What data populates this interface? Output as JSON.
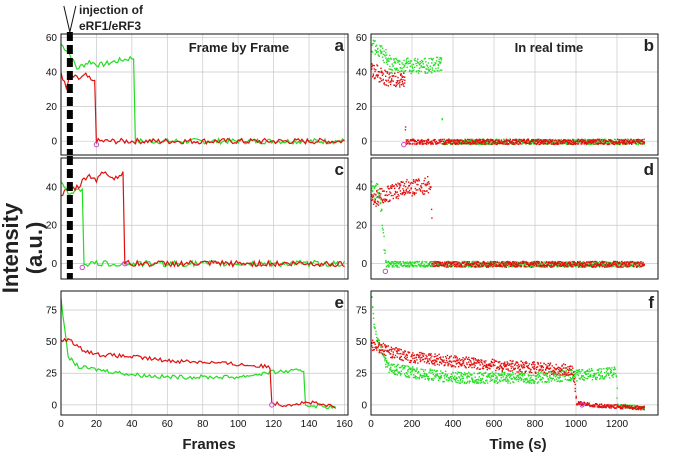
{
  "figure": {
    "ylabel_line1": "Intensity",
    "ylabel_line2": "(a.u.)",
    "xlabel_left": "Frames",
    "xlabel_right": "Time (s)",
    "annotation_line1": "injection of",
    "annotation_line2": "eRF1/eRF3",
    "colors": {
      "green": "#22dd22",
      "red": "#e01010",
      "marker": "#cc44cc",
      "injection": "#000000"
    }
  },
  "chart_data": [
    {
      "id": "a",
      "panel_label": "a",
      "heading": "Frame by Frame",
      "type": "line",
      "xlim": [
        0,
        162
      ],
      "ylim": [
        -8,
        62
      ],
      "yticks": [
        0,
        20,
        40,
        60
      ],
      "xticks": [],
      "injection_x": 5,
      "series": [
        {
          "color": "green",
          "segments": [
            [
              0,
              56
            ],
            [
              4,
              52
            ],
            [
              9,
              42
            ],
            [
              16,
              46
            ],
            [
              22,
              44
            ],
            [
              30,
              46
            ],
            [
              39,
              48
            ],
            [
              41,
              48
            ],
            [
              42,
              0
            ],
            [
              160,
              0
            ]
          ]
        },
        {
          "color": "red",
          "segments": [
            [
              0,
              40
            ],
            [
              3,
              30
            ],
            [
              5,
              38
            ],
            [
              10,
              36
            ],
            [
              14,
              38
            ],
            [
              18,
              34
            ],
            [
              19.5,
              36
            ],
            [
              20,
              0
            ],
            [
              160,
              0
            ]
          ]
        }
      ],
      "markers": [
        {
          "x": 20,
          "y": -2
        }
      ]
    },
    {
      "id": "b",
      "panel_label": "b",
      "heading": "In real time",
      "type": "scatter",
      "xlim": [
        0,
        1400
      ],
      "ylim": [
        -8,
        62
      ],
      "yticks": [
        0,
        20,
        40,
        60
      ],
      "xticks": [],
      "series": [
        {
          "color": "green",
          "segments": [
            [
              0,
              56
            ],
            [
              50,
              52
            ],
            [
              100,
              44
            ],
            [
              200,
              44
            ],
            [
              300,
              44
            ],
            [
              340,
              46
            ],
            [
              345,
              0
            ],
            [
              1330,
              0
            ]
          ]
        },
        {
          "color": "red",
          "segments": [
            [
              0,
              42
            ],
            [
              50,
              38
            ],
            [
              100,
              36
            ],
            [
              160,
              36
            ],
            [
              165,
              0
            ],
            [
              1330,
              0
            ]
          ]
        }
      ],
      "markers": [
        {
          "x": 160,
          "y": -2
        }
      ]
    },
    {
      "id": "c",
      "panel_label": "c",
      "heading": "",
      "type": "line",
      "xlim": [
        0,
        162
      ],
      "ylim": [
        -8,
        55
      ],
      "yticks": [
        0,
        20,
        40
      ],
      "xticks": [],
      "injection_x": 5,
      "series": [
        {
          "color": "green",
          "segments": [
            [
              0,
              42
            ],
            [
              5,
              36
            ],
            [
              10,
              40
            ],
            [
              12,
              38
            ],
            [
              13,
              0
            ],
            [
              160,
              0
            ]
          ]
        },
        {
          "color": "red",
          "segments": [
            [
              0,
              36
            ],
            [
              5,
              38
            ],
            [
              10,
              40
            ],
            [
              15,
              46
            ],
            [
              20,
              44
            ],
            [
              25,
              48
            ],
            [
              30,
              44
            ],
            [
              35,
              48
            ],
            [
              36,
              0
            ],
            [
              160,
              0
            ]
          ]
        }
      ],
      "markers": [
        {
          "x": 12,
          "y": -2
        },
        {
          "x": 36,
          "y": 0
        }
      ]
    },
    {
      "id": "d",
      "panel_label": "d",
      "heading": "",
      "type": "scatter",
      "xlim": [
        0,
        1400
      ],
      "ylim": [
        -8,
        55
      ],
      "yticks": [
        0,
        20,
        40
      ],
      "xticks": [],
      "series": [
        {
          "color": "green",
          "segments": [
            [
              0,
              40
            ],
            [
              40,
              36
            ],
            [
              70,
              0
            ],
            [
              1330,
              0
            ]
          ]
        },
        {
          "color": "red",
          "segments": [
            [
              0,
              34
            ],
            [
              60,
              36
            ],
            [
              120,
              38
            ],
            [
              180,
              40
            ],
            [
              240,
              40
            ],
            [
              290,
              42
            ],
            [
              295,
              0
            ],
            [
              1330,
              0
            ]
          ]
        }
      ],
      "markers": [
        {
          "x": 70,
          "y": -4
        },
        {
          "x": 295,
          "y": 0
        }
      ]
    },
    {
      "id": "e",
      "panel_label": "e",
      "heading": "",
      "type": "line",
      "xlim": [
        0,
        162
      ],
      "ylim": [
        -8,
        90
      ],
      "yticks": [
        0,
        25,
        50,
        75
      ],
      "xticks": [
        0,
        20,
        40,
        60,
        80,
        100,
        120,
        140,
        160
      ],
      "series": [
        {
          "color": "green",
          "segments": [
            [
              0,
              85
            ],
            [
              2,
              60
            ],
            [
              4,
              38
            ],
            [
              10,
              30
            ],
            [
              20,
              28
            ],
            [
              40,
              24
            ],
            [
              60,
              22
            ],
            [
              80,
              22
            ],
            [
              100,
              22
            ],
            [
              120,
              26
            ],
            [
              137,
              27
            ],
            [
              138,
              0
            ],
            [
              155,
              -2
            ]
          ]
        },
        {
          "color": "red",
          "segments": [
            [
              0,
              50
            ],
            [
              5,
              52
            ],
            [
              10,
              45
            ],
            [
              20,
              40
            ],
            [
              40,
              38
            ],
            [
              60,
              35
            ],
            [
              80,
              34
            ],
            [
              100,
              32
            ],
            [
              118,
              30
            ],
            [
              119,
              2
            ],
            [
              125,
              0
            ],
            [
              140,
              2
            ],
            [
              155,
              -2
            ]
          ]
        }
      ],
      "markers": [
        {
          "x": 119,
          "y": 0
        }
      ]
    },
    {
      "id": "f",
      "panel_label": "f",
      "heading": "",
      "type": "scatter",
      "xlim": [
        0,
        1400
      ],
      "ylim": [
        -8,
        90
      ],
      "yticks": [
        0,
        25,
        50,
        75
      ],
      "xticks": [
        0,
        200,
        400,
        600,
        800,
        1000,
        1200
      ],
      "series": [
        {
          "color": "green",
          "segments": [
            [
              0,
              82
            ],
            [
              20,
              55
            ],
            [
              80,
              30
            ],
            [
              200,
              26
            ],
            [
              400,
              22
            ],
            [
              600,
              22
            ],
            [
              800,
              22
            ],
            [
              1000,
              24
            ],
            [
              1190,
              26
            ],
            [
              1200,
              0
            ],
            [
              1330,
              -2
            ]
          ]
        },
        {
          "color": "red",
          "segments": [
            [
              0,
              48
            ],
            [
              100,
              42
            ],
            [
              200,
              38
            ],
            [
              400,
              35
            ],
            [
              600,
              32
            ],
            [
              800,
              30
            ],
            [
              980,
              28
            ],
            [
              1000,
              2
            ],
            [
              1100,
              0
            ],
            [
              1330,
              -2
            ]
          ]
        }
      ],
      "markers": [
        {
          "x": 1030,
          "y": 0
        }
      ]
    }
  ]
}
